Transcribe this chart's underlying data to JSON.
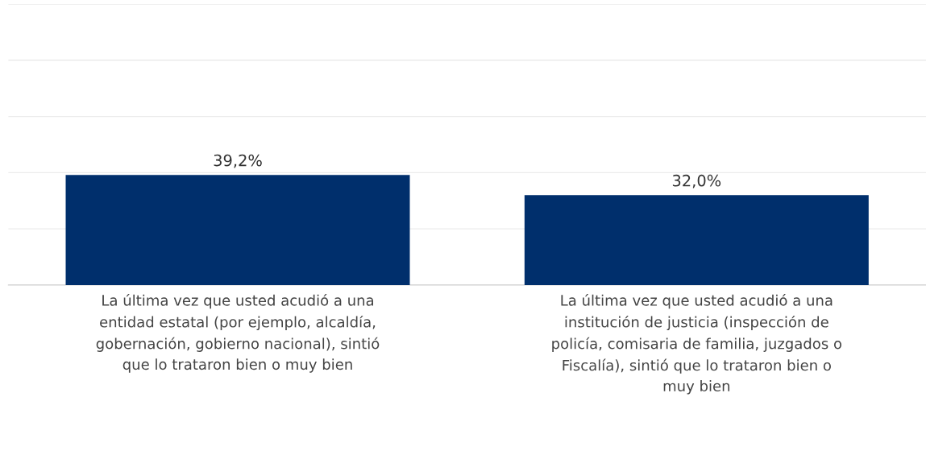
{
  "chart_data": {
    "type": "bar",
    "categories": [
      "La última vez que usted acudió a una\nentidad estatal (por ejemplo, alcaldía,\ngobernación, gobierno nacional), sintió\nque lo trataron bien o muy bien",
      "La última vez que usted acudió a una\ninstitución de justicia (inspección de\npolicía, comisaria de familia, juzgados o\nFiscalía), sintió que lo trataron bien o\nmuy bien"
    ],
    "values": [
      39.2,
      32.0
    ],
    "value_labels": [
      "39,2%",
      "32,0%"
    ],
    "color": "#002f6c",
    "ylim": [
      0,
      100
    ],
    "yticks": [
      {
        "value": 0,
        "label": null
      },
      {
        "value": 20,
        "label": null
      },
      {
        "value": 40,
        "label": null
      },
      {
        "value": 60,
        "label": null
      },
      {
        "value": 80,
        "label": null
      },
      {
        "value": 100,
        "label": null
      }
    ],
    "grid": "y"
  }
}
